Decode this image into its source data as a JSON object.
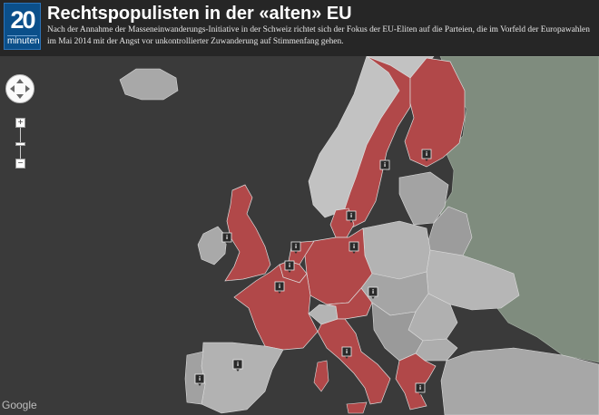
{
  "logo": {
    "number": "20",
    "word": "minuten"
  },
  "title": "Rechtspopulisten in der «alten» EU",
  "subtitle": "Nach der Annahme der Masseneinwanderungs-Initiative in der Schweiz richtet sich der Fokus der EU-Eliten auf die Parteien, die im Vorfeld der Europawahlen im Mai 2014 mit der Angst vor unkontrollierter Zuwanderung auf Stimmenfang gehen.",
  "map": {
    "attribution": "Google",
    "colors": {
      "sea": "#3a3a3a",
      "highlighted": "#b14849",
      "neutral": "#b7b7b7",
      "dark_neutral": "#8f8f8f",
      "russia": "#7f8c7e",
      "borders": "#dcdcdc"
    },
    "highlighted_countries": [
      "United Kingdom",
      "France",
      "Belgium",
      "Netherlands",
      "Luxembourg",
      "Germany",
      "Denmark",
      "Sweden",
      "Finland",
      "Austria",
      "Italy",
      "Greece"
    ],
    "marker_icon": "info-marker-icon",
    "marker_label": "i"
  },
  "controls": {
    "zoom_in": "+",
    "zoom_out": "−",
    "pan_icon": "pan-arrows-icon"
  }
}
